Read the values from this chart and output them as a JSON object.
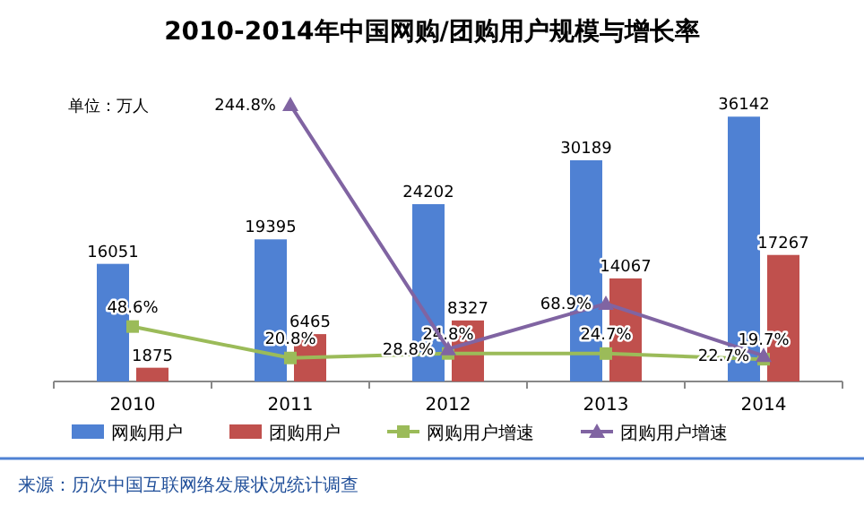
{
  "chart_data": {
    "type": "bar",
    "title": "2010-2014年中国网购/团购用户规模与增长率",
    "categories": [
      "2010",
      "2011",
      "2012",
      "2013",
      "2014"
    ],
    "series": [
      {
        "name": "网购用户",
        "color": "#4f81d3",
        "values": [
          16051,
          19395,
          24202,
          30189,
          36142
        ]
      },
      {
        "name": "团购用户",
        "color": "#c0504d",
        "values": [
          1875,
          6465,
          8327,
          14067,
          17267
        ]
      },
      {
        "name": "网购用户增速",
        "type": "line",
        "axis": "y2",
        "marker": "square",
        "color": "#9bbb59",
        "values": [
          48.6,
          20.8,
          24.8,
          24.7,
          19.7
        ],
        "value_labels": [
          "48.6%",
          "20.8%",
          "24.8%",
          "24.7%",
          "19.7%"
        ]
      },
      {
        "name": "团购用户增速",
        "type": "line",
        "axis": "y2",
        "marker": "triangle",
        "color": "#8064a2",
        "values": [
          null,
          244.8,
          28.8,
          68.9,
          22.7
        ],
        "value_labels": [
          null,
          "244.8%",
          "28.8%",
          "68.9%",
          "22.7%"
        ]
      }
    ],
    "data_labels": true,
    "legend": "bottom",
    "annotations": [
      "单位：万人",
      "来源：历次中国互联网络发展状况统计调查"
    ]
  }
}
